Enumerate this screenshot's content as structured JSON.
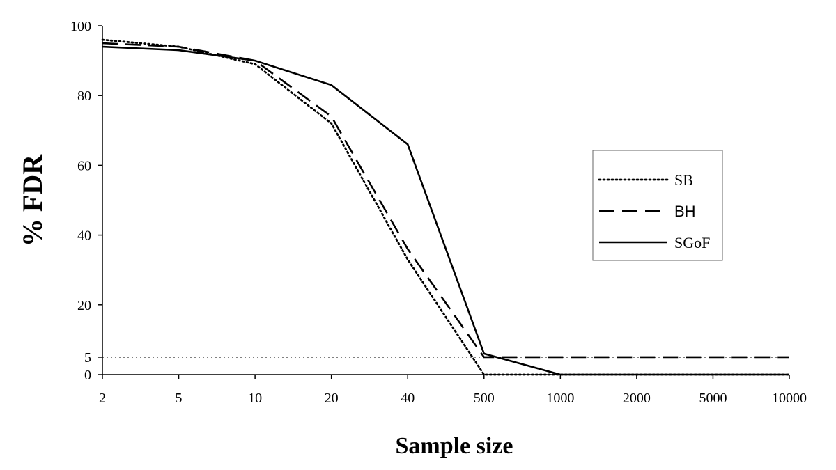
{
  "chart_data": {
    "type": "line",
    "categories": [
      "2",
      "5",
      "10",
      "20",
      "40",
      "500",
      "1000",
      "2000",
      "5000",
      "10000"
    ],
    "y_ticks": [
      0,
      5,
      20,
      40,
      60,
      80,
      100
    ],
    "ylim": [
      0,
      100
    ],
    "xlabel": "Sample size",
    "ylabel": "% FDR",
    "grid": false,
    "legend_position": "right",
    "reference_line": {
      "y": 5,
      "style": "dotted"
    },
    "series": [
      {
        "name": "SB",
        "style": "dotted",
        "values": [
          96,
          94,
          89,
          72,
          33,
          0,
          0,
          0,
          0,
          0
        ]
      },
      {
        "name": "BH",
        "style": "dashed",
        "values": [
          95,
          94,
          90,
          74,
          36,
          5,
          5,
          5,
          5,
          5
        ]
      },
      {
        "name": "SGoF",
        "style": "solid",
        "values": [
          94,
          93,
          90,
          83,
          66,
          6,
          0,
          0,
          0,
          0
        ]
      }
    ]
  }
}
